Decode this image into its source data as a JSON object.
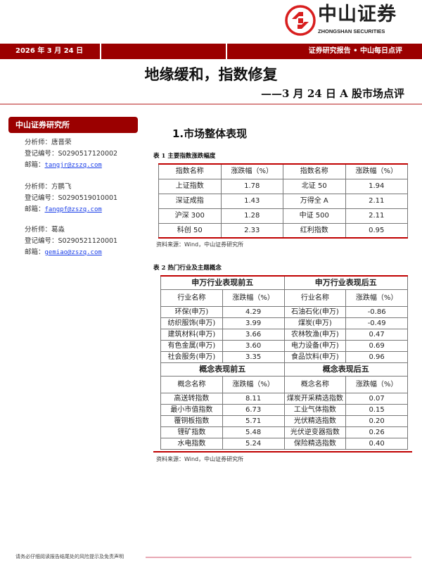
{
  "brand": {
    "name_cn": "中山证券",
    "name_en": "ZHONGSHAN SECURITIES",
    "color": "#9b0000"
  },
  "banner": {
    "date": "2026 年 3 月 24 日",
    "category": "证券研究报告 • 中山每日点评"
  },
  "title": "地缘缓和，指数修复",
  "subtitle": "——3 月 24 日 A 股市场点评",
  "sidebar": {
    "header": "中山证券研究所",
    "analysts": [
      {
        "name": "分析师：唐晋荣",
        "reg": "登记编号：S0290517120002",
        "email_label": "邮箱：",
        "email": "tangjr@zszq.com"
      },
      {
        "name": "分析师：方鹏飞",
        "reg": "登记编号：S0290519010001",
        "email_label": "邮箱：",
        "email": "fangpf@zszq.com"
      },
      {
        "name": "分析师：葛淼",
        "reg": "登记编号：S0290521120001",
        "email_label": "邮箱：",
        "email": "gemiao@zszq.com"
      }
    ]
  },
  "section1": "1.市场整体表现",
  "table1": {
    "caption": "表 1   主要指数涨跌幅度",
    "headers": [
      "指数名称",
      "涨跌幅（%）",
      "指数名称",
      "涨跌幅（%）"
    ],
    "rows": [
      [
        "上证指数",
        "1.78",
        "北证 50",
        "1.94"
      ],
      [
        "深证成指",
        "1.43",
        "万得全 A",
        "2.11"
      ],
      [
        "沪深 300",
        "1.28",
        "中证 500",
        "2.11"
      ],
      [
        "科创 50",
        "2.33",
        "红利指数",
        "0.95"
      ]
    ],
    "source": "资料来源：Wind，中山证券研究所"
  },
  "table2": {
    "caption": "表 2   热门行业及主题概念",
    "industry": {
      "left_title": "申万行业表现前五",
      "right_title": "申万行业表现后五",
      "headers": [
        "行业名称",
        "涨跌幅（%）",
        "行业名称",
        "涨跌幅（%）"
      ],
      "rows": [
        [
          "环保(申万)",
          "4.29",
          "石油石化(申万)",
          "-0.86"
        ],
        [
          "纺织服饰(申万)",
          "3.99",
          "煤炭(申万)",
          "-0.49"
        ],
        [
          "建筑材料(申万)",
          "3.66",
          "农林牧渔(申万)",
          "0.47"
        ],
        [
          "有色金属(申万)",
          "3.60",
          "电力设备(申万)",
          "0.69"
        ],
        [
          "社会服务(申万)",
          "3.35",
          "食品饮料(申万)",
          "0.96"
        ]
      ]
    },
    "concept": {
      "left_title": "概念表现前五",
      "right_title": "概念表现后五",
      "headers": [
        "概念名称",
        "涨跌幅（%）",
        "概念名称",
        "涨跌幅（%）"
      ],
      "rows": [
        [
          "高送转指数",
          "8.11",
          "煤炭开采精选指数",
          "0.07"
        ],
        [
          "最小市值指数",
          "6.73",
          "工业气体指数",
          "0.15"
        ],
        [
          "覆铜板指数",
          "5.71",
          "光伏精选指数",
          "0.20"
        ],
        [
          "锂矿指数",
          "5.48",
          "光伏逆变器指数",
          "0.26"
        ],
        [
          "水电指数",
          "5.24",
          "保险精选指数",
          "0.40"
        ]
      ]
    },
    "source": "资料来源：Wind，中山证券研究所"
  },
  "footer": "请务必仔细阅读报告结尾处的风险提示及免责声明"
}
